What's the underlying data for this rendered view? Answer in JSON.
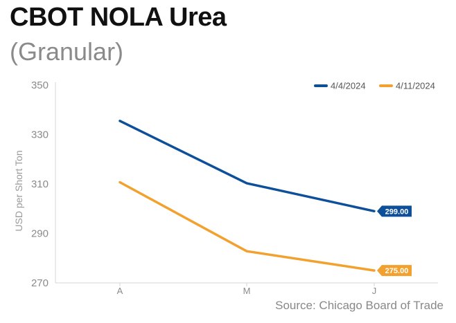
{
  "header": {
    "title": "CBOT NOLA Urea",
    "subtitle": "(Granular)"
  },
  "source": "Source: Chicago Board of Trade",
  "chart_data": {
    "type": "line",
    "title": "CBOT NOLA Urea",
    "subtitle": "(Granular)",
    "xlabel": "",
    "ylabel": "USD per Short Ton",
    "categories": [
      "A",
      "M",
      "J"
    ],
    "ylim": [
      270,
      350
    ],
    "yticks": [
      270,
      290,
      310,
      330,
      350
    ],
    "grid": false,
    "legend_position": "top-right",
    "series": [
      {
        "name": "4/4/2024",
        "color": "#0d4f99",
        "values": [
          335.5,
          310.3,
          299.0
        ],
        "end_label": "299.00"
      },
      {
        "name": "4/11/2024",
        "color": "#f2a12e",
        "values": [
          310.7,
          282.8,
          275.0
        ],
        "end_label": "275.00"
      }
    ]
  }
}
